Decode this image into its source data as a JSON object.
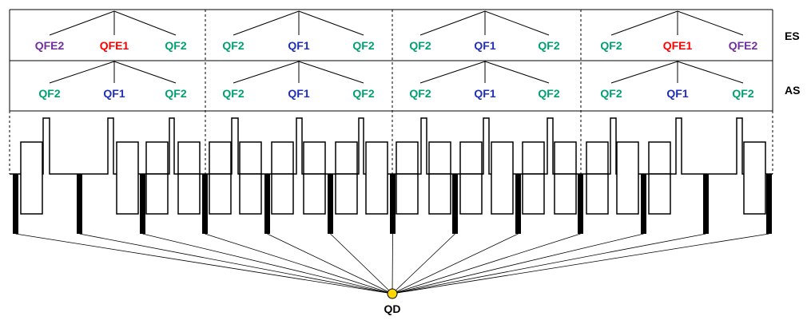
{
  "colors": {
    "QFE2": "#7030A0",
    "QFE1": "#FF0000",
    "QF1": "#1F2FB8",
    "QF2": "#00A070",
    "line": "#000000",
    "qd_fill": "#FFD700"
  },
  "rows": {
    "es": {
      "label": "ES",
      "segments": [
        [
          "QFE2",
          "QFE1",
          "QF2"
        ],
        [
          "QF2",
          "QF1",
          "QF2"
        ],
        [
          "QF2",
          "QF1",
          "QF2"
        ],
        [
          "QF2",
          "QFE1",
          "QFE2"
        ]
      ]
    },
    "as": {
      "label": "AS",
      "segments": [
        [
          "QF2",
          "QF1",
          "QF2"
        ],
        [
          "QF2",
          "QF1",
          "QF2"
        ],
        [
          "QF2",
          "QF1",
          "QF2"
        ],
        [
          "QF2",
          "QF1",
          "QF2"
        ]
      ]
    }
  },
  "qd_label": "QD"
}
